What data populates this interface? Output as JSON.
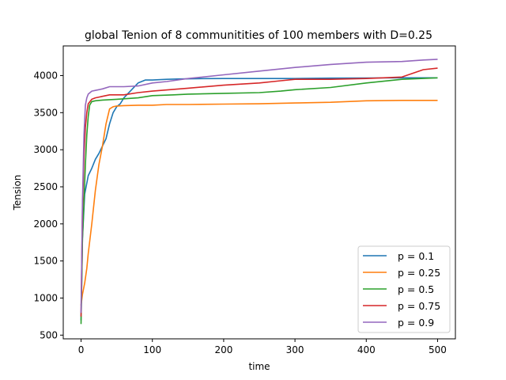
{
  "chart_data": {
    "type": "line",
    "title": "global Tenion of 8 communitities of 100 members with  D=0.25",
    "xlabel": "time",
    "ylabel": "Tension",
    "xlim": [
      -25,
      525
    ],
    "ylim": [
      450,
      4400
    ],
    "xticks": [
      0,
      100,
      200,
      300,
      400,
      500
    ],
    "yticks": [
      500,
      1000,
      1500,
      2000,
      2500,
      3000,
      3500,
      4000
    ],
    "grid": false,
    "legend_position": "lower-right",
    "series": [
      {
        "name": "p = 0.1",
        "color": "#1f77b4",
        "x": [
          0,
          2,
          5,
          8,
          10,
          15,
          20,
          25,
          30,
          35,
          40,
          45,
          50,
          55,
          60,
          70,
          80,
          90,
          100,
          120,
          140,
          160,
          200,
          250,
          300,
          350,
          400,
          450,
          500
        ],
        "y": [
          700,
          1800,
          2400,
          2550,
          2650,
          2750,
          2870,
          2950,
          3050,
          3150,
          3350,
          3500,
          3580,
          3620,
          3700,
          3800,
          3900,
          3940,
          3940,
          3950,
          3955,
          3958,
          3960,
          3960,
          3960,
          3965,
          3968,
          3970,
          3970
        ]
      },
      {
        "name": "p = 0.25",
        "color": "#ff7f0e",
        "x": [
          0,
          2,
          5,
          8,
          10,
          15,
          20,
          25,
          30,
          35,
          40,
          45,
          50,
          60,
          80,
          100,
          120,
          150,
          200,
          250,
          300,
          350,
          400,
          450,
          500
        ],
        "y": [
          900,
          1050,
          1200,
          1400,
          1600,
          2000,
          2450,
          2800,
          3050,
          3350,
          3550,
          3580,
          3590,
          3595,
          3600,
          3600,
          3610,
          3610,
          3615,
          3620,
          3630,
          3640,
          3660,
          3665,
          3665
        ]
      },
      {
        "name": "p = 0.5",
        "color": "#2ca02c",
        "x": [
          0,
          2,
          4,
          6,
          8,
          10,
          12,
          15,
          20,
          30,
          50,
          80,
          100,
          130,
          150,
          200,
          250,
          280,
          300,
          350,
          400,
          450,
          500
        ],
        "y": [
          650,
          1800,
          2300,
          2800,
          3200,
          3450,
          3600,
          3650,
          3660,
          3670,
          3680,
          3700,
          3730,
          3740,
          3750,
          3760,
          3770,
          3790,
          3810,
          3840,
          3900,
          3950,
          3970
        ]
      },
      {
        "name": "p = 0.75",
        "color": "#d62728",
        "x": [
          0,
          2,
          4,
          6,
          8,
          10,
          15,
          20,
          30,
          40,
          60,
          80,
          100,
          150,
          200,
          250,
          280,
          300,
          350,
          400,
          450,
          480,
          500
        ],
        "y": [
          750,
          2200,
          2900,
          3300,
          3500,
          3620,
          3680,
          3700,
          3720,
          3740,
          3740,
          3770,
          3790,
          3830,
          3870,
          3900,
          3930,
          3950,
          3950,
          3960,
          3980,
          4080,
          4100
        ]
      },
      {
        "name": "p = 0.9",
        "color": "#9467bd",
        "x": [
          0,
          2,
          4,
          6,
          8,
          10,
          15,
          20,
          30,
          40,
          60,
          80,
          100,
          120,
          150,
          200,
          250,
          300,
          350,
          400,
          450,
          480,
          500
        ],
        "y": [
          800,
          2300,
          3200,
          3600,
          3700,
          3750,
          3790,
          3800,
          3820,
          3850,
          3850,
          3860,
          3900,
          3920,
          3960,
          4010,
          4060,
          4110,
          4150,
          4180,
          4190,
          4210,
          4220
        ]
      }
    ]
  }
}
